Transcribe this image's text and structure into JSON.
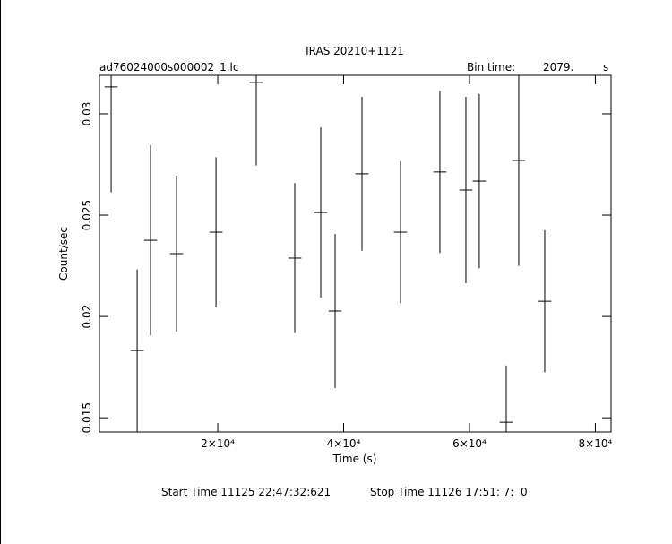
{
  "chart_data": {
    "type": "errorbar",
    "title": "IRAS 20210+1121",
    "subtitle": "ad76024000s000002_1.lc",
    "bin_time_label": "Bin time:",
    "bin_time": "2079.",
    "bin_time_unit": "s",
    "x_label": "Time (s)",
    "y_label": "Count/sec",
    "start_time": "Start Time 11125 22:47:32:621",
    "stop_time": "Stop Time 11126 17:51: 7:  0",
    "x": [
      3060,
      7190,
      9320,
      13450,
      19720,
      26120,
      32240,
      36370,
      38650,
      42920,
      49040,
      55300,
      59430,
      61560,
      65840,
      67830,
      71960
    ],
    "series": [
      {
        "color": "#000000",
        "values": [
          0.03133,
          0.01832,
          0.02376,
          0.0231,
          0.02416,
          0.03155,
          0.02288,
          0.02513,
          0.02027,
          0.02704,
          0.02416,
          0.02713,
          0.02624,
          0.02668,
          0.01478,
          0.0277,
          0.02075
        ],
        "errors": [
          0.0052,
          0.004,
          0.0047,
          0.00385,
          0.0037,
          0.0041,
          0.0037,
          0.0042,
          0.0038,
          0.0038,
          0.0035,
          0.004,
          0.0046,
          0.0043,
          0.0028,
          0.0052,
          0.0035
        ]
      }
    ],
    "xlim": [
      1200,
      82500
    ],
    "ylim": [
      0.0143,
      0.0319
    ],
    "xticks": [
      {
        "value": 20000,
        "label": "2×10⁴"
      },
      {
        "value": 40000,
        "label": "4×10⁴"
      },
      {
        "value": 60000,
        "label": "6×10⁴"
      },
      {
        "value": 80000,
        "label": "8×10⁴"
      }
    ],
    "yticks": [
      0.015,
      0.02,
      0.025,
      0.03
    ]
  }
}
